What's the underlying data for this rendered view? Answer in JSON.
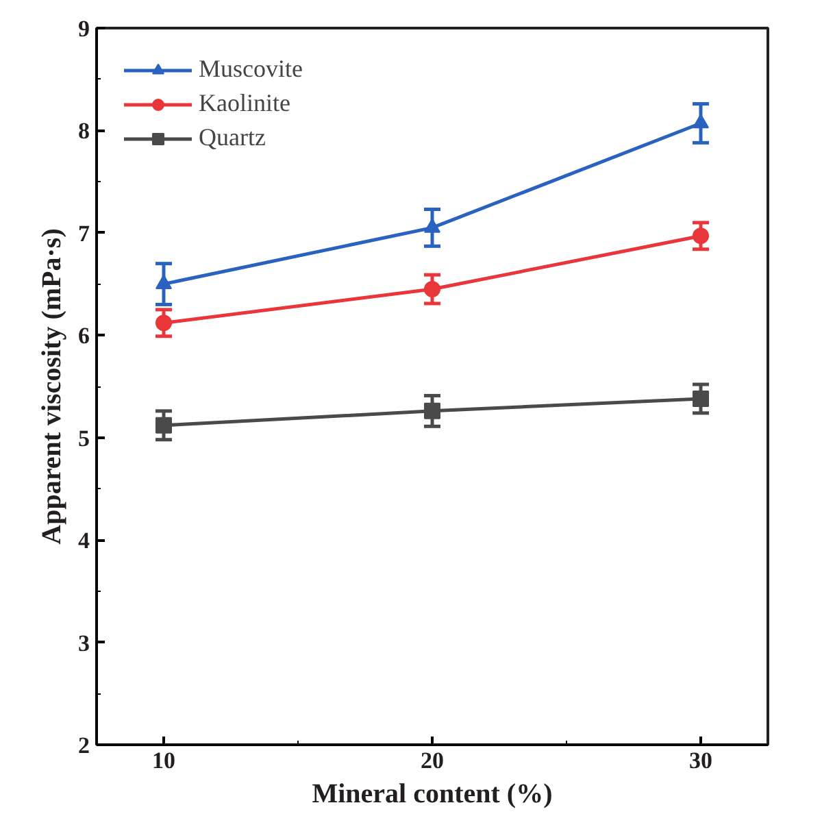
{
  "chart_data": {
    "type": "line",
    "xlabel": "Mineral content (%)",
    "ylabel": "Apparent viscosity (mPa·s)",
    "x": [
      10,
      20,
      30
    ],
    "xlim": [
      7.5,
      32.5
    ],
    "xticks": [
      10,
      {
        "value": 15,
        "label": null
      },
      20,
      {
        "value": 25,
        "label": null
      },
      30
    ],
    "ylim": [
      2,
      9
    ],
    "yticks": [
      2,
      {
        "value": 2.5,
        "label": null
      },
      3,
      {
        "value": 3.5,
        "label": null
      },
      4,
      {
        "value": 4.5,
        "label": null
      },
      5,
      {
        "value": 5.5,
        "label": null
      },
      6,
      {
        "value": 6.5,
        "label": null
      },
      7,
      {
        "value": 7.5,
        "label": null
      },
      8,
      {
        "value": 8.5,
        "label": null
      },
      9
    ],
    "grid": false,
    "legend": "top left",
    "line_style": "solid",
    "series": [
      {
        "name": "Muscovite",
        "color": "#2a62c0",
        "marker": "triangle",
        "values": [
          6.5,
          7.05,
          8.07
        ],
        "errors": [
          0.2,
          0.18,
          0.19
        ]
      },
      {
        "name": "Kaolinite",
        "color": "#e8363a",
        "marker": "circle",
        "values": [
          6.12,
          6.45,
          6.97
        ],
        "errors": [
          0.13,
          0.14,
          0.13
        ]
      },
      {
        "name": "Quartz",
        "color": "#4a4a4a",
        "marker": "square",
        "values": [
          5.12,
          5.26,
          5.38
        ],
        "errors": [
          0.14,
          0.15,
          0.14
        ]
      }
    ]
  }
}
